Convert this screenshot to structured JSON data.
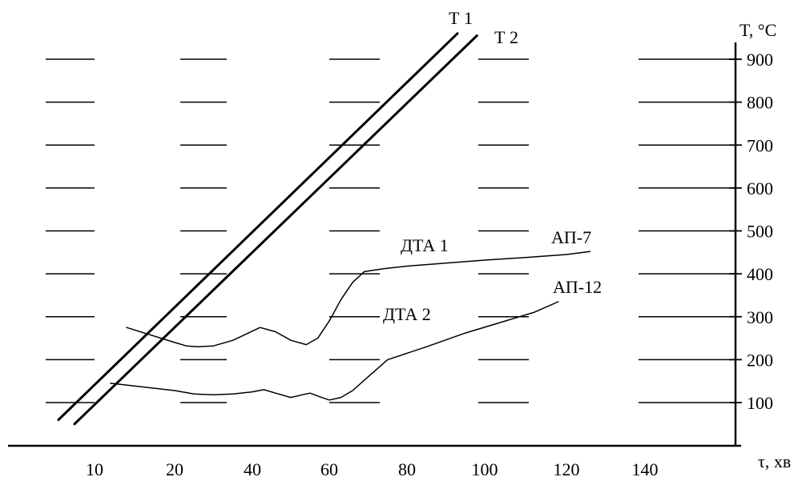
{
  "chart_data": {
    "type": "line",
    "xlabel": "τ, хв",
    "ylabel": "T, °C",
    "grid": "dashed horizontal",
    "x_ticks": [
      10,
      20,
      40,
      60,
      80,
      100,
      120,
      140
    ],
    "x_tick_labels": [
      "10",
      "20",
      "40",
      "60",
      "80",
      "100",
      "120",
      "140"
    ],
    "y_ticks": [
      100,
      200,
      300,
      400,
      500,
      600,
      700,
      800,
      900
    ],
    "y_tick_labels": [
      "100",
      "200",
      "300",
      "400",
      "500",
      "600",
      "700",
      "800",
      "900"
    ],
    "series": [
      {
        "name": "T 1",
        "color": "#000000",
        "x": [
          5.5,
          93
        ],
        "y": [
          60,
          960
        ]
      },
      {
        "name": "T 2",
        "color": "#000000",
        "x": [
          7.5,
          98
        ],
        "y": [
          50,
          955
        ]
      },
      {
        "name": "ДТА 1",
        "color": "#000000",
        "x": [
          14,
          20,
          23,
          26,
          30,
          35,
          42,
          46,
          50,
          54,
          57,
          60,
          63,
          66,
          69,
          74,
          80,
          90,
          100,
          110,
          120,
          126
        ],
        "y": [
          275,
          240,
          232,
          230,
          232,
          245,
          275,
          265,
          245,
          235,
          250,
          290,
          340,
          380,
          405,
          412,
          418,
          425,
          432,
          438,
          445,
          452
        ]
      },
      {
        "name": "ДТА 2",
        "color": "#000000",
        "x": [
          12,
          20,
          25,
          30,
          35,
          40,
          43,
          46,
          50,
          53,
          55,
          58,
          60,
          63,
          66,
          70,
          75,
          85,
          95,
          105,
          112,
          118
        ],
        "y": [
          145,
          128,
          120,
          118,
          120,
          125,
          130,
          122,
          112,
          118,
          122,
          112,
          106,
          112,
          128,
          160,
          200,
          230,
          262,
          290,
          310,
          335
        ]
      }
    ],
    "series_labels": {
      "t1": "Т 1",
      "t2": "Т 2",
      "dta1": "ДТА 1",
      "dta2": "ДТА 2",
      "ap7": "АП-7",
      "ap12": "АП-12"
    }
  }
}
